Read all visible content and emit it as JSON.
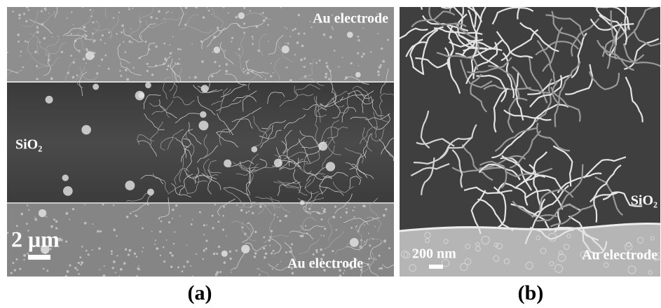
{
  "panel_a": {
    "label": "(a)",
    "top_electrode_label": "Au electrode",
    "substrate_label": "SiO₂",
    "scale_bar": "2 μm",
    "bottom_electrode_label": "Au electrode"
  },
  "panel_b": {
    "label": "(b)",
    "substrate_label": "SiO₂",
    "scale_bar": "200 nm",
    "electrode_label": "Au electrode"
  }
}
